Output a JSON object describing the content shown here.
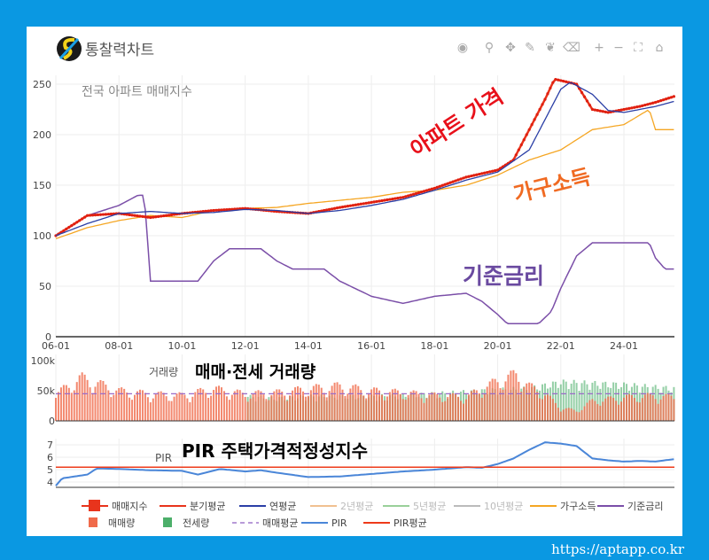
{
  "header": {
    "title": "통찰력차트",
    "toolbar": [
      "camera-icon",
      "zoom-icon",
      "pan-icon",
      "draw-line-icon",
      "draw-path-icon",
      "erase-icon",
      "zoom-in-icon",
      "zoom-out-icon",
      "autoscale-icon",
      "home-icon"
    ]
  },
  "footer": {
    "url": "https://aptapp.co.kr"
  },
  "colors": {
    "price": "#e8341c",
    "yearAvg": "#2b3fa6",
    "income": "#f5a623",
    "rate": "#7b4fa8",
    "sale": "#f06a4a",
    "jeonse": "#4caf6a",
    "pir": "#4a86d8",
    "pirAvg": "#ee3a1a"
  },
  "chart_data": [
    {
      "type": "line",
      "title": "전국 아파트 매매지수",
      "xlabel": "",
      "ylabel": "",
      "xlim": [
        2006,
        2025.6
      ],
      "ylim": [
        0,
        260
      ],
      "yticks": [
        0,
        50,
        100,
        150,
        200,
        250
      ],
      "xticks": [
        "06-01",
        "08-01",
        "10-01",
        "12-01",
        "14-01",
        "16-01",
        "18-01",
        "20-01",
        "22-01",
        "24-01"
      ],
      "annotations": {
        "price": "아파트 가격",
        "income": "가구소득",
        "rate": "기준금리"
      },
      "series": [
        {
          "name": "매매지수",
          "x": [
            2006,
            2006.5,
            2007,
            2008,
            2009,
            2010,
            2011,
            2012,
            2013,
            2014,
            2015,
            2016,
            2017,
            2018,
            2019,
            2020,
            2020.5,
            2021,
            2021.5,
            2021.8,
            2022.5,
            2023,
            2023.5,
            2024,
            2024.5,
            2025,
            2025.6
          ],
          "y": [
            100,
            110,
            120,
            122,
            118,
            122,
            125,
            127,
            124,
            122,
            128,
            133,
            138,
            147,
            158,
            165,
            175,
            205,
            235,
            255,
            250,
            225,
            222,
            225,
            228,
            232,
            238
          ]
        },
        {
          "name": "연평균",
          "x": [
            2006,
            2007,
            2008,
            2009,
            2010,
            2011,
            2012,
            2013,
            2014,
            2015,
            2016,
            2017,
            2018,
            2019,
            2020,
            2021,
            2022,
            2022.3,
            2023,
            2023.5,
            2024,
            2025,
            2025.6
          ],
          "y": [
            100,
            112,
            122,
            124,
            122,
            123,
            126,
            125,
            122,
            125,
            130,
            136,
            145,
            155,
            163,
            185,
            245,
            252,
            240,
            224,
            222,
            228,
            233
          ]
        },
        {
          "name": "가구소득",
          "x": [
            2006,
            2007,
            2008,
            2009,
            2010,
            2011,
            2012,
            2013,
            2014,
            2015,
            2016,
            2017,
            2018,
            2019,
            2020,
            2021,
            2022,
            2023,
            2024,
            2024.8,
            2025,
            2025.6
          ],
          "y": [
            97,
            108,
            115,
            120,
            118,
            125,
            127,
            128,
            132,
            135,
            138,
            143,
            145,
            150,
            160,
            175,
            185,
            205,
            210,
            225,
            205,
            205
          ]
        },
        {
          "name": "기준금리",
          "x": [
            2006,
            2007,
            2008,
            2008.6,
            2008.8,
            2009,
            2010.5,
            2011,
            2011.5,
            2012.5,
            2013,
            2013.5,
            2014.5,
            2015,
            2016,
            2017,
            2018,
            2019,
            2019.5,
            2020,
            2020.3,
            2021.3,
            2021.7,
            2022,
            2022.5,
            2023,
            2024.8,
            2025,
            2025.3,
            2025.6
          ],
          "y": [
            100,
            120,
            130,
            140,
            140,
            55,
            55,
            75,
            87,
            87,
            75,
            67,
            67,
            55,
            40,
            33,
            40,
            43,
            35,
            22,
            13,
            13,
            25,
            48,
            80,
            93,
            93,
            78,
            67,
            67
          ]
        }
      ]
    },
    {
      "type": "bar",
      "title": "매매·전세 거래량",
      "ylabel": "거래량",
      "ylim": [
        0,
        100000
      ],
      "yticks": [
        "0",
        "50k",
        "100k"
      ],
      "avg": 45000,
      "series": [
        {
          "name": "매매량",
          "x": [
            2006,
            2006.8,
            2008,
            2009,
            2010,
            2011,
            2012,
            2013,
            2014,
            2015,
            2016,
            2017,
            2018,
            2019,
            2020,
            2020.6,
            2021,
            2021.5,
            2022,
            2022.5,
            2023,
            2024,
            2025,
            2025.6
          ],
          "y": [
            40000,
            65000,
            45000,
            40000,
            38000,
            48000,
            40000,
            42000,
            48000,
            52000,
            45000,
            42000,
            38000,
            36000,
            60000,
            70000,
            52000,
            40000,
            20000,
            15000,
            30000,
            35000,
            38000,
            35000
          ]
        },
        {
          "name": "전세량",
          "x": [
            2012,
            2013,
            2014,
            2015,
            2016,
            2017,
            2018,
            2019,
            2020,
            2021,
            2022,
            2023,
            2024,
            2025,
            2025.6
          ],
          "y": [
            38000,
            35000,
            38000,
            38000,
            38000,
            40000,
            42000,
            45000,
            48000,
            50000,
            60000,
            58000,
            56000,
            52000,
            50000
          ]
        }
      ]
    },
    {
      "type": "line",
      "title": "PIR 주택가격적정성지수",
      "ylabel": "PIR",
      "ylim": [
        3.6,
        7.6
      ],
      "yticks": [
        4,
        5,
        6,
        7
      ],
      "pirAvg": 5.2,
      "series": [
        {
          "name": "PIR",
          "x": [
            2006,
            2006.2,
            2007,
            2007.3,
            2008,
            2009,
            2010,
            2010.5,
            2011.2,
            2012,
            2012.5,
            2013,
            2014,
            2015,
            2016,
            2017,
            2018,
            2019,
            2019.5,
            2020,
            2020.5,
            2021,
            2021.5,
            2022,
            2022.5,
            2023,
            2023.5,
            2024,
            2024.5,
            2025,
            2025.6
          ],
          "y": [
            3.7,
            4.3,
            4.6,
            5.1,
            5.05,
            4.95,
            4.9,
            4.6,
            5.05,
            4.85,
            4.95,
            4.75,
            4.4,
            4.45,
            4.65,
            4.85,
            5.0,
            5.2,
            5.15,
            5.45,
            5.9,
            6.6,
            7.2,
            7.1,
            6.9,
            5.9,
            5.75,
            5.65,
            5.7,
            5.65,
            5.85
          ]
        }
      ]
    }
  ],
  "legend": [
    [
      "매매지수",
      "분기평균",
      "연평균",
      "2년평균",
      "5년평균",
      "10년평균",
      "가구소득",
      "기준금리"
    ],
    [
      "매매량",
      "전세량",
      "매매평균",
      "PIR",
      "PIR평균"
    ]
  ]
}
